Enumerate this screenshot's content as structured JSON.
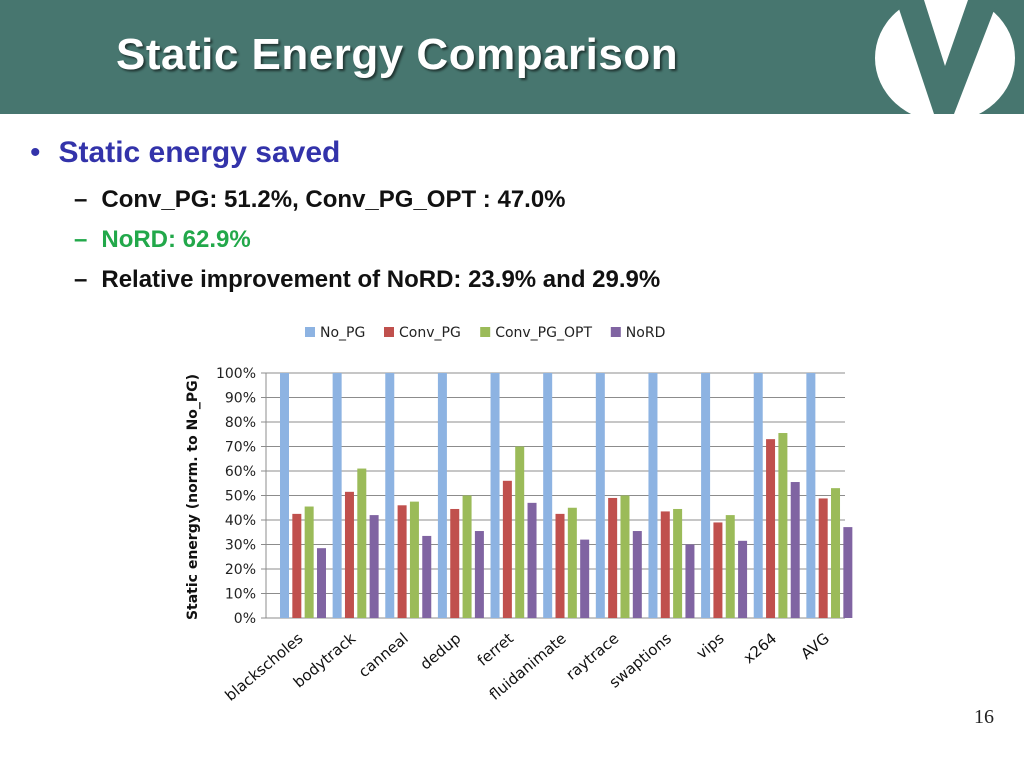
{
  "slide": {
    "title": "Static Energy Comparison",
    "page_number": "16",
    "colors": {
      "title_bar": "#47766f",
      "heading": "#3333aa",
      "nord_text": "#22a84a"
    }
  },
  "bullets": {
    "main": "Static energy saved",
    "sub": [
      {
        "text": "Conv_PG: 51.2%, Conv_PG_OPT : 47.0%",
        "color": "#111111"
      },
      {
        "text": "NoRD: 62.9%",
        "color": "#22a84a"
      },
      {
        "text": "Relative improvement of NoRD: 23.9% and 29.9%",
        "color": "#111111"
      }
    ]
  },
  "chart_data": {
    "type": "bar",
    "title": "",
    "xlabel": "",
    "ylabel": "Static energy (norm. to No_PG)",
    "ylim": [
      0,
      100
    ],
    "yticks": [
      0,
      10,
      20,
      30,
      40,
      50,
      60,
      70,
      80,
      90,
      100
    ],
    "ytick_labels": [
      "0%",
      "10%",
      "20%",
      "30%",
      "40%",
      "50%",
      "60%",
      "70%",
      "80%",
      "90%",
      "100%"
    ],
    "grid": true,
    "legend_position": "top",
    "categories": [
      "blackscholes",
      "bodytrack",
      "canneal",
      "dedup",
      "ferret",
      "fluidanimate",
      "raytrace",
      "swaptions",
      "vips",
      "x264",
      "AVG"
    ],
    "series": [
      {
        "name": "No_PG",
        "color": "#8db3e2",
        "values": [
          100,
          100,
          100,
          100,
          100,
          100,
          100,
          100,
          100,
          100,
          100
        ]
      },
      {
        "name": "Conv_PG",
        "color": "#c0504d",
        "values": [
          42.5,
          51.5,
          46,
          44.5,
          56,
          42.5,
          49,
          43.5,
          39,
          73,
          48.8
        ]
      },
      {
        "name": "Conv_PG_OPT",
        "color": "#9bbb59",
        "values": [
          45.5,
          61,
          47.5,
          50,
          70,
          45,
          50,
          44.5,
          42,
          75.5,
          53
        ]
      },
      {
        "name": "NoRD",
        "color": "#8064a2",
        "values": [
          28.5,
          42,
          33.5,
          35.5,
          47,
          32,
          35.5,
          30,
          31.5,
          55.5,
          37.1
        ]
      }
    ]
  }
}
